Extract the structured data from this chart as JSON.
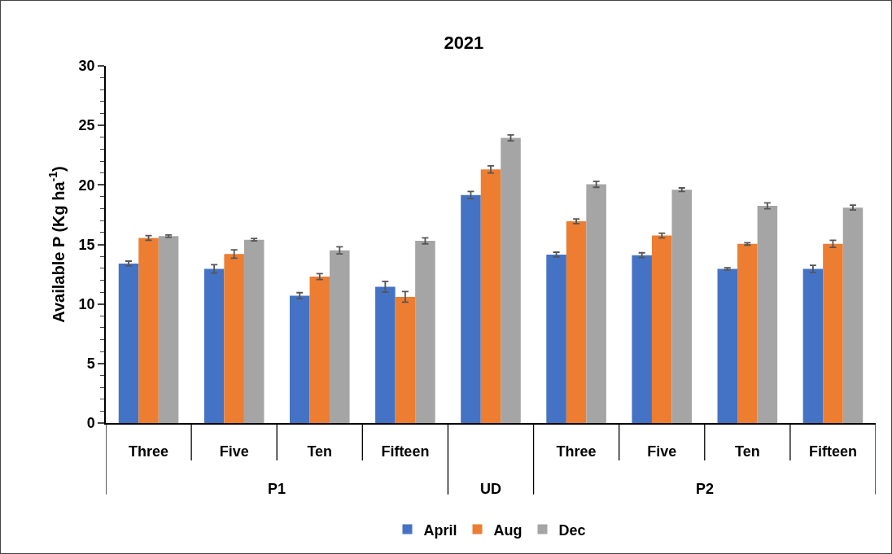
{
  "chart_data": {
    "type": "bar",
    "title": "2021",
    "ylabel": "Available P (Kg ha$^{-1}$)",
    "categories": [
      "Three",
      "Five",
      "Ten",
      "Fifteen",
      null,
      "Three",
      "Five",
      "Ten",
      "Fifteen"
    ],
    "annotations": [
      "P1",
      "UD",
      "P2"
    ],
    "series": [
      {
        "name": "April",
        "color": "#4472c4",
        "values": [
          13.4,
          12.95,
          10.7,
          11.45,
          19.15,
          14.15,
          14.1,
          12.95,
          12.95
        ],
        "errors": [
          0.2,
          0.35,
          0.25,
          0.45,
          0.3,
          0.2,
          0.2,
          0.1,
          0.3
        ]
      },
      {
        "name": "Aug",
        "color": "#ed7d31",
        "values": [
          15.55,
          14.2,
          12.3,
          10.6,
          21.3,
          16.95,
          15.75,
          15.05,
          15.05
        ],
        "errors": [
          0.2,
          0.35,
          0.25,
          0.45,
          0.3,
          0.2,
          0.2,
          0.1,
          0.3
        ]
      },
      {
        "name": "Dec",
        "color": "#a5a5a5",
        "values": [
          15.7,
          15.4,
          14.5,
          15.3,
          23.95,
          20.05,
          19.6,
          18.25,
          18.1
        ],
        "errors": [
          0.1,
          0.1,
          0.3,
          0.25,
          0.25,
          0.25,
          0.15,
          0.25,
          0.2
        ]
      }
    ],
    "ylim": [
      0,
      30
    ],
    "yticks": [
      0,
      5,
      10,
      15,
      20,
      25,
      30
    ],
    "grid": false,
    "legend": "bottom"
  }
}
